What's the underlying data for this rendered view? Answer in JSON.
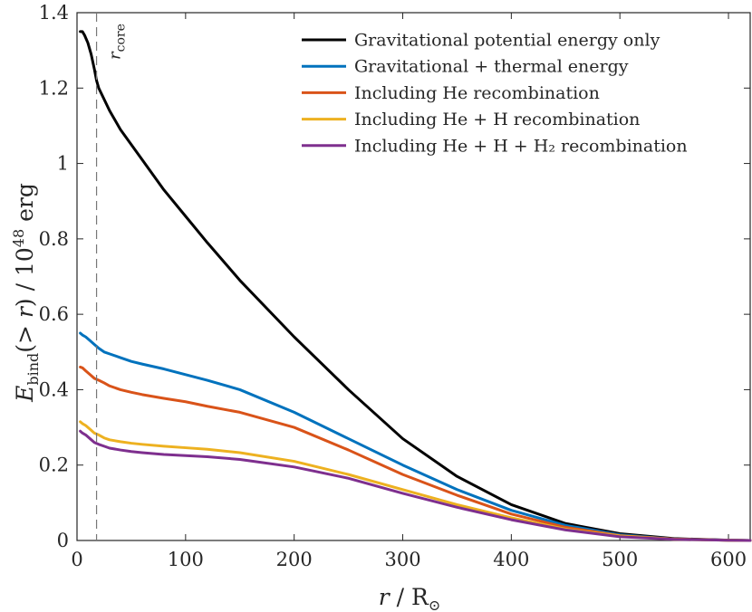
{
  "chart_data": {
    "type": "line",
    "title": "",
    "xlabel": "r / R_⊙",
    "ylabel": "E_bind(> r) / 10^48 erg",
    "xlim": [
      0,
      620
    ],
    "ylim": [
      0,
      1.4
    ],
    "xticks": [
      0,
      100,
      200,
      300,
      400,
      500,
      600
    ],
    "yticks": [
      0,
      0.2,
      0.4,
      0.6,
      0.8,
      1,
      1.2,
      1.4
    ],
    "xtick_labels": [
      "0",
      "100",
      "200",
      "300",
      "400",
      "500",
      "600"
    ],
    "ytick_labels": [
      "0",
      "0.2",
      "0.4",
      "0.6",
      "0.8",
      "1",
      "1.2",
      "1.4"
    ],
    "grid": false,
    "legend_position": "top-right",
    "annotations": [
      {
        "type": "vertical-dashed-line",
        "x": 18,
        "label": "r_core"
      }
    ],
    "series": [
      {
        "name": "Gravitational potential energy only",
        "color": "#000000",
        "x": [
          3,
          5,
          7,
          10,
          13,
          16,
          18,
          20,
          25,
          30,
          40,
          50,
          60,
          80,
          100,
          120,
          150,
          200,
          250,
          300,
          350,
          400,
          450,
          500,
          550,
          600,
          620
        ],
        "y": [
          1.35,
          1.35,
          1.34,
          1.32,
          1.29,
          1.25,
          1.22,
          1.2,
          1.17,
          1.14,
          1.09,
          1.05,
          1.01,
          0.93,
          0.86,
          0.79,
          0.69,
          0.54,
          0.4,
          0.27,
          0.17,
          0.095,
          0.045,
          0.018,
          0.005,
          0.001,
          0.0
        ]
      },
      {
        "name": "Gravitational + thermal energy",
        "color": "#0072BD",
        "x": [
          3,
          5,
          8,
          12,
          16,
          20,
          25,
          30,
          40,
          50,
          60,
          80,
          100,
          120,
          150,
          200,
          250,
          300,
          350,
          400,
          450,
          500,
          550,
          600,
          620
        ],
        "y": [
          0.55,
          0.545,
          0.54,
          0.53,
          0.52,
          0.51,
          0.5,
          0.495,
          0.485,
          0.475,
          0.468,
          0.455,
          0.44,
          0.425,
          0.4,
          0.34,
          0.27,
          0.2,
          0.135,
          0.08,
          0.04,
          0.015,
          0.004,
          0.0005,
          0.0
        ]
      },
      {
        "name": "Including He recombination",
        "color": "#D95319",
        "x": [
          3,
          5,
          8,
          12,
          16,
          20,
          25,
          30,
          40,
          50,
          60,
          80,
          100,
          120,
          150,
          200,
          250,
          300,
          350,
          400,
          450,
          500,
          550,
          600,
          620
        ],
        "y": [
          0.46,
          0.458,
          0.45,
          0.44,
          0.43,
          0.425,
          0.418,
          0.41,
          0.4,
          0.393,
          0.387,
          0.377,
          0.368,
          0.356,
          0.34,
          0.3,
          0.24,
          0.175,
          0.12,
          0.07,
          0.035,
          0.013,
          0.004,
          0.0005,
          0.0
        ]
      },
      {
        "name": "Including He + H recombination",
        "color": "#EDB120",
        "x": [
          3,
          5,
          8,
          12,
          16,
          20,
          25,
          30,
          40,
          50,
          60,
          80,
          100,
          120,
          150,
          200,
          250,
          300,
          350,
          400,
          450,
          500,
          550,
          600,
          620
        ],
        "y": [
          0.315,
          0.31,
          0.305,
          0.295,
          0.285,
          0.28,
          0.272,
          0.267,
          0.262,
          0.258,
          0.255,
          0.25,
          0.246,
          0.242,
          0.233,
          0.21,
          0.175,
          0.135,
          0.095,
          0.06,
          0.03,
          0.012,
          0.003,
          0.0005,
          0.0
        ]
      },
      {
        "name": "Including He + H + H₂ recombination",
        "color": "#7E2F8E",
        "x": [
          3,
          5,
          8,
          12,
          16,
          20,
          25,
          30,
          40,
          50,
          60,
          80,
          100,
          120,
          150,
          200,
          250,
          300,
          350,
          400,
          450,
          500,
          550,
          600,
          620
        ],
        "y": [
          0.29,
          0.285,
          0.28,
          0.27,
          0.26,
          0.255,
          0.25,
          0.245,
          0.24,
          0.236,
          0.233,
          0.228,
          0.225,
          0.222,
          0.215,
          0.195,
          0.165,
          0.125,
          0.088,
          0.055,
          0.028,
          0.01,
          0.003,
          0.0005,
          0.0
        ]
      }
    ]
  }
}
